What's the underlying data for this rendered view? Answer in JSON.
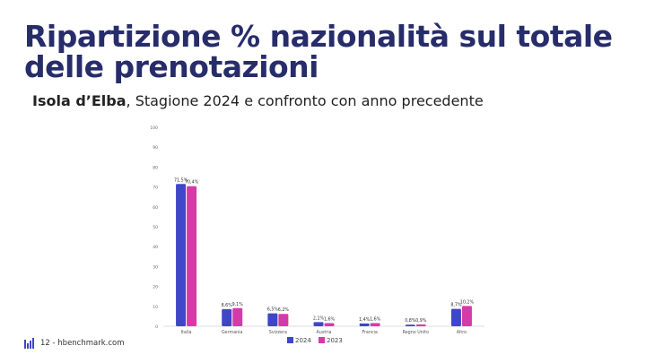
{
  "header": {
    "title": "Ripartizione % nazionalità sul totale delle prenotazioni",
    "subtitle_bold": "Isola d’Elba",
    "subtitle_rest": ", Stagione 2024 e confronto con anno precedente"
  },
  "footer": {
    "text": "12 - hbenchmark.com"
  },
  "colors": {
    "title": "#272c6b",
    "series_2024": "#3f46c8",
    "series_2023": "#d63aa9"
  },
  "chart_data": {
    "type": "bar",
    "categories": [
      "Italia",
      "Germania",
      "Svizzera",
      "Austria",
      "Francia",
      "Regno Unito",
      "Altro"
    ],
    "series": [
      {
        "name": "2024",
        "values": [
          71.5,
          8.6,
          6.5,
          2.1,
          1.4,
          0.8,
          8.7
        ],
        "labels": [
          "71,5%",
          "8,6%",
          "6,5%",
          "2,1%",
          "1,4%",
          "0,8%",
          "8,7%"
        ],
        "color": "#3f46c8"
      },
      {
        "name": "2023",
        "values": [
          70.4,
          9.1,
          6.2,
          1.6,
          1.6,
          0.9,
          10.2
        ],
        "labels": [
          "70,4%",
          "9,1%",
          "6,2%",
          "1,6%",
          "1,6%",
          "0,9%",
          "10,2%"
        ],
        "color": "#d63aa9"
      }
    ],
    "ylim": [
      0,
      100
    ],
    "yticks": [
      "0",
      "10",
      "20",
      "30",
      "40",
      "50",
      "60",
      "70",
      "80",
      "90",
      "100"
    ],
    "legend": "bottom",
    "grid": false
  }
}
